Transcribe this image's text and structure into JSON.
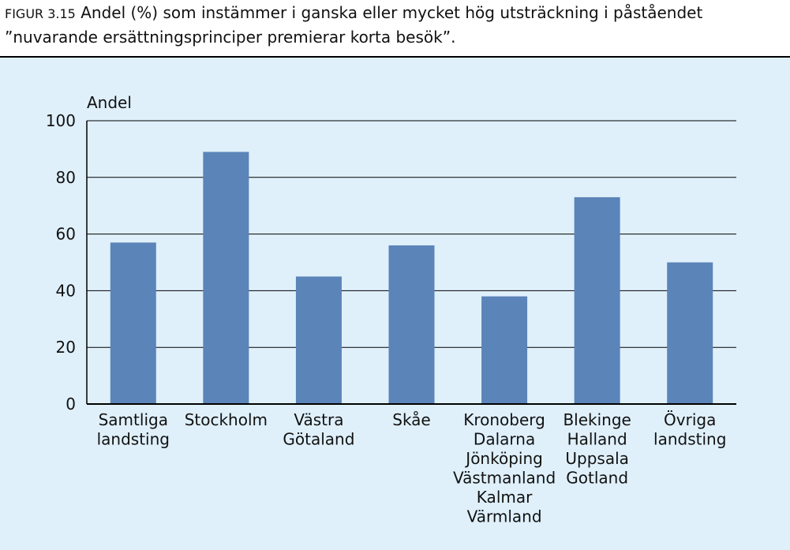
{
  "chart_data": {
    "type": "bar",
    "title_label": "FIGUR 3.15",
    "title": [
      "Andel (%) som instämmer i ganska eller mycket hög utsträckning i påståendet",
      "”nuvarande ersättningsprinciper premierar korta besök”."
    ],
    "y_label": "Andel",
    "categories": [
      [
        "Samtliga",
        "landsting"
      ],
      [
        "Stockholm"
      ],
      [
        "Västra",
        "Götaland"
      ],
      [
        "Skåe"
      ],
      [
        "Kronoberg",
        "Dalarna",
        "Jönköping",
        "Västmanland",
        "Kalmar",
        "Värmland"
      ],
      [
        "Blekinge",
        "Halland",
        "Uppsala",
        "Gotland"
      ],
      [
        "Övriga",
        "landsting"
      ]
    ],
    "values": [
      57,
      89,
      45,
      56,
      38,
      73,
      50
    ],
    "color": "#5b84b8",
    "ylim": [
      0,
      100
    ],
    "yticks": [
      0,
      20,
      40,
      60,
      80,
      100
    ],
    "grid": true
  }
}
